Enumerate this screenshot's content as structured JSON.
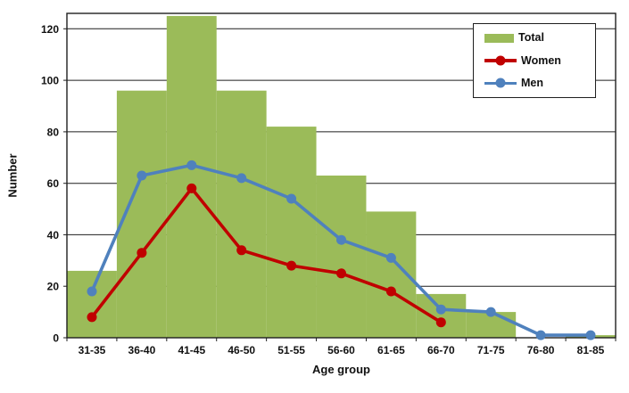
{
  "chart_data": {
    "type": "combo",
    "title": "",
    "xlabel": "Age group",
    "ylabel": "Number",
    "categories": [
      "31-35",
      "36-40",
      "41-45",
      "46-50",
      "51-55",
      "56-60",
      "61-65",
      "66-70",
      "71-75",
      "76-80",
      "81-85"
    ],
    "series": [
      {
        "name": "Total",
        "kind": "bar",
        "color": "#9BBB59",
        "values": [
          26,
          96,
          125,
          96,
          82,
          63,
          49,
          17,
          10,
          0,
          1
        ]
      },
      {
        "name": "Women",
        "kind": "line",
        "color": "#C00000",
        "values": [
          8,
          33,
          58,
          34,
          28,
          25,
          18,
          6,
          null,
          null,
          null
        ]
      },
      {
        "name": "Men",
        "kind": "line",
        "color": "#4F81BD",
        "values": [
          18,
          63,
          67,
          62,
          54,
          38,
          31,
          11,
          10,
          1,
          1
        ]
      }
    ],
    "ylim": [
      0,
      126
    ],
    "yticks": [
      0,
      20,
      40,
      60,
      80,
      100,
      120
    ],
    "grid": true,
    "legend_position": "top-right",
    "colors": {
      "background": "#FFFFFF",
      "axis": "#1F1F1F",
      "text": "#111111"
    }
  }
}
